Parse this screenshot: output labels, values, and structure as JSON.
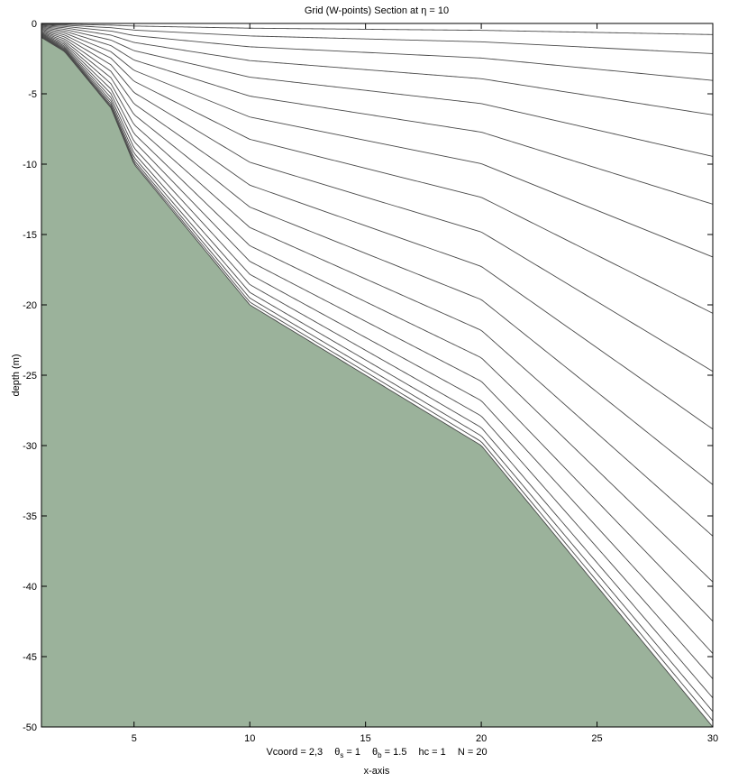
{
  "chart_data": {
    "type": "line",
    "title": "Grid (W-points) Section at  η = 10",
    "xlabel": "x-axis",
    "ylabel": "depth  (m)",
    "xlim": [
      1,
      30
    ],
    "ylim": [
      -50,
      0
    ],
    "xticks": [
      5,
      10,
      15,
      20,
      25,
      30
    ],
    "yticks": [
      0,
      -5,
      -10,
      -15,
      -20,
      -25,
      -30,
      -35,
      -40,
      -45,
      -50
    ],
    "footer": {
      "vcoord": "Vcoord = 2,3",
      "theta_s": "θ",
      "theta_s_sub": "s",
      "theta_s_val": " = 1",
      "theta_b": "θ",
      "theta_b_sub": "b",
      "theta_b_val": " = 1.5",
      "hc": "hc  = 1",
      "N": "N = 20"
    },
    "parameters": {
      "theta_s": 1,
      "theta_b": 1.5,
      "hc": 1,
      "N": 20
    },
    "bathymetry": {
      "x": [
        1,
        2,
        3,
        4,
        5,
        10,
        20,
        30
      ],
      "depth": [
        1,
        2,
        4,
        6,
        10,
        20,
        30,
        50
      ]
    },
    "fill_color": "#9bb29b",
    "line_color": "#4a4a4a"
  }
}
